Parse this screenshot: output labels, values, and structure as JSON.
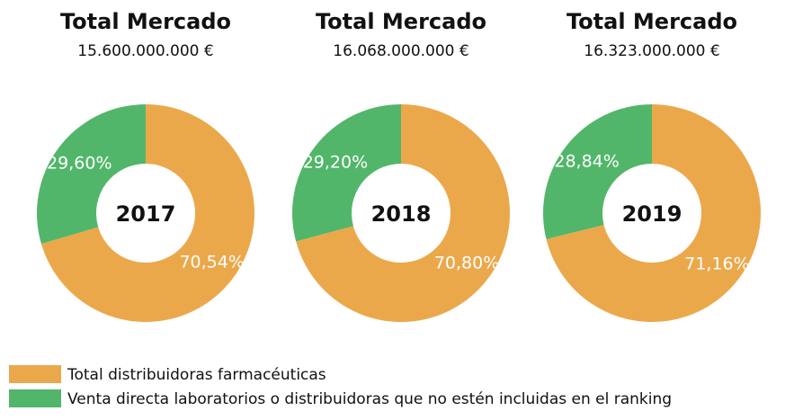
{
  "chart_data": [
    {
      "type": "donut",
      "title": "Total Mercado",
      "subtitle": "15.600.000.000 €",
      "center_label": "2017",
      "categories": [
        "Total distribuidoras farmacéuticas",
        "Venta directa laboratorios o distribuidoras que no estén incluidas en el ranking"
      ],
      "values": [
        70.54,
        29.6
      ],
      "value_labels": [
        "70,54%",
        "29,60%"
      ],
      "colors": [
        "#eba84b",
        "#52b66a"
      ]
    },
    {
      "type": "donut",
      "title": "Total Mercado",
      "subtitle": "16.068.000.000 €",
      "center_label": "2018",
      "categories": [
        "Total distribuidoras farmacéuticas",
        "Venta directa laboratorios o distribuidoras que no estén incluidas en el ranking"
      ],
      "values": [
        70.8,
        29.2
      ],
      "value_labels": [
        "70,80%",
        "29,20%"
      ],
      "colors": [
        "#eba84b",
        "#52b66a"
      ]
    },
    {
      "type": "donut",
      "title": "Total Mercado",
      "subtitle": "16.323.000.000 €",
      "center_label": "2019",
      "categories": [
        "Total distribuidoras farmacéuticas",
        "Venta directa laboratorios o distribuidoras que no estén incluidas en el ranking"
      ],
      "values": [
        71.16,
        28.84
      ],
      "value_labels": [
        "71,16%",
        "28,84%"
      ],
      "colors": [
        "#eba84b",
        "#52b66a"
      ]
    }
  ]
}
